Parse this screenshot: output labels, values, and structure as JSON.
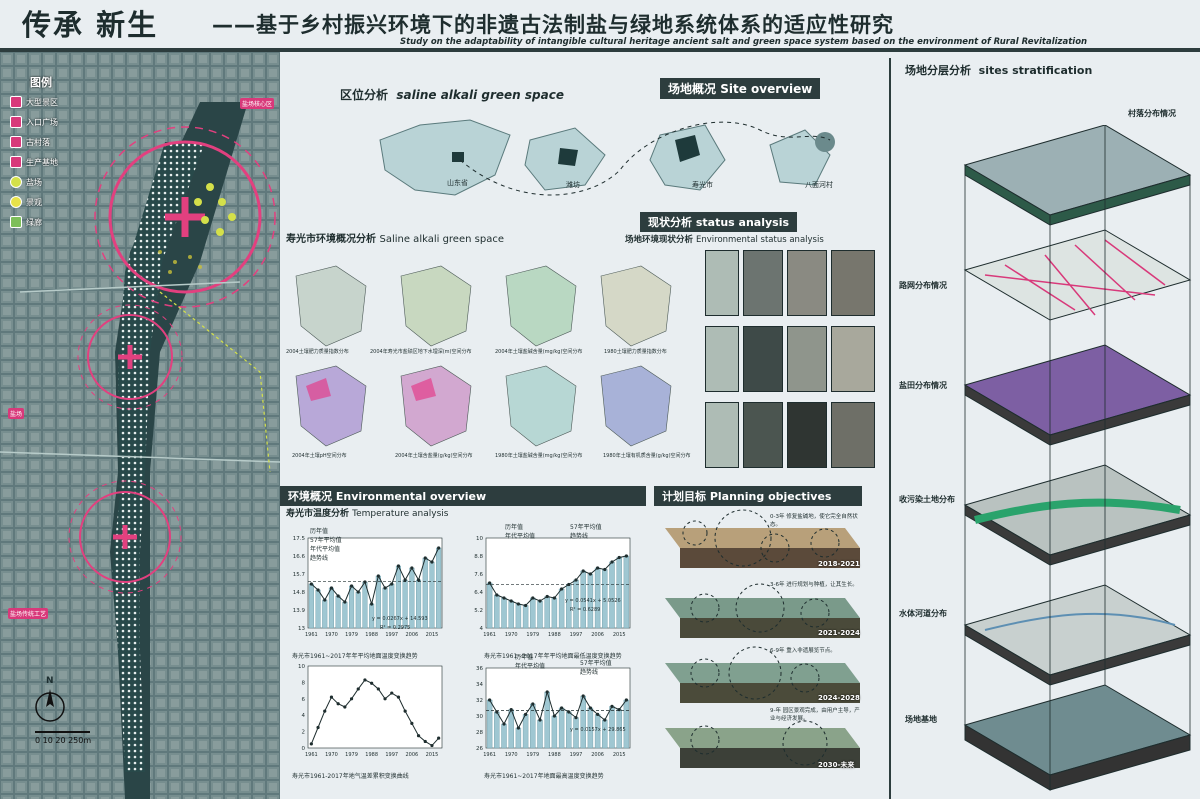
{
  "header": {
    "title": "传承 新生",
    "subtitle": "——基于乡村振兴环境下的非遗古法制盐与绿地系统体系的适应性研究",
    "subtitle_en": "Study on the adaptability of intangible cultural heritage ancient salt and green space system based on the environment of Rural Revitalization"
  },
  "legend": {
    "title": "图例",
    "items": [
      "大型景区",
      "入口广场",
      "古村落",
      "生产基地",
      "盐场",
      "景观"
    ],
    "river_label": "绿廊",
    "scale": "0  10  20    250m",
    "north": "N"
  },
  "map_labels": {
    "tag_top": "盐场核心区",
    "tag_mid": "盐场",
    "tag_low": "盐场传统工艺"
  },
  "location": {
    "heading": "区位分析",
    "heading_en": "saline alkali green space",
    "regions": [
      "山东省",
      "潍坊",
      "寿光市",
      "八面河村"
    ]
  },
  "site": {
    "heading": "场地概况",
    "heading_en": "Site overview"
  },
  "saline": {
    "heading": "寿光市环境概况分析",
    "heading_en": "Saline alkali green space",
    "maps": [
      "2004土壤肥力质量指数分布",
      "2004年寿光市盐碛区地下水埋深(m)空间分布",
      "2004年土壤盐碱含量(mg/kg)空间分布",
      "1980土壤肥力质量指数分布",
      "2004年土壤pH空间分布",
      "2004年土壤含盐量(g/kg)空间分布",
      "1980年土壤盐碱含量(mg/kg)空间分布",
      "1980年土壤有机质含量(g/kg)空间分布"
    ]
  },
  "status": {
    "heading": "现状分析",
    "heading_en": "status analysis",
    "sub": "场地环境现状分析",
    "sub_en": "Environmental status analysis"
  },
  "env": {
    "heading": "环境概况",
    "heading_en": "Environmental overview",
    "sub": "寿光市温度分析",
    "sub_en": "Temperature analysis"
  },
  "plan": {
    "heading": "计划目标",
    "heading_en": "Planning objectives",
    "stages": [
      "2018-2021",
      "2021-2024",
      "2024-2028",
      "2030-未来"
    ],
    "notes": [
      "0-3年 修复盐碱地，使它完全自然状态。",
      "3-6年 进行规划与种植，让其生长。",
      "6-9年 重入非遗展览节点。",
      "9-年 园区景观完成，由用户主导，产业与经济发展。"
    ]
  },
  "layers": {
    "heading": "场地分层分析",
    "heading_en": "sites stratification",
    "items": [
      "村落分布情况",
      "路网分布情况",
      "盐田分布情况",
      "收污染土地分布",
      "水体河道分布",
      "场地基地"
    ]
  },
  "charts_text": {
    "c1_caption": "寿光市1961~2017年年平均地面温度变换趋势",
    "c2_caption": "寿光市1961~2017年年平均地面最低温度变换趋势",
    "c3_caption": "寿光市1961-2017年地气温差累积变换曲线",
    "c4_caption": "寿光市1961~2017年地面最高温度变换趋势",
    "c1_eq": "y = 0.0267x + 14.593",
    "c1_r2": "R² = 0.2975",
    "c2_eq": "y = 0.0541x + 5.0526",
    "c2_r2": "R² = 0.6289",
    "c4_eq": "y = 0.0157x + 29.865",
    "leg_hist": "历年值",
    "leg_57": "57年平均值",
    "leg_dec": "年代平均值",
    "leg_trend": "趋势线",
    "ylabel1": "温度/℃",
    "xlabel": "年份"
  },
  "chart_data": [
    {
      "type": "line",
      "title": "寿光市1961~2017年年平均地面温度变换趋势",
      "xlabel": "年份",
      "ylabel": "温度/℃",
      "ylim": [
        13.0,
        17.5
      ],
      "x": [
        1961,
        1964,
        1967,
        1970,
        1973,
        1976,
        1979,
        1982,
        1985,
        1988,
        1991,
        1994,
        1997,
        2000,
        2003,
        2006,
        2009,
        2012,
        2015,
        2017
      ],
      "series": [
        {
          "name": "历年值",
          "values": [
            15.2,
            14.9,
            14.4,
            15.0,
            14.6,
            14.3,
            15.1,
            14.8,
            15.3,
            14.2,
            15.6,
            15.0,
            15.2,
            16.1,
            15.4,
            16.0,
            15.4,
            16.5,
            16.3,
            17.0
          ]
        }
      ]
    },
    {
      "type": "line",
      "title": "寿光市1961~2017年年平均地面最低温度变换趋势",
      "xlabel": "年份",
      "ylabel": "温度/℃",
      "ylim": [
        4.0,
        10.0
      ],
      "x": [
        1961,
        1964,
        1967,
        1970,
        1973,
        1976,
        1979,
        1982,
        1985,
        1988,
        1991,
        1994,
        1997,
        2000,
        2003,
        2006,
        2009,
        2012,
        2015,
        2017
      ],
      "series": [
        {
          "name": "历年值",
          "values": [
            7.0,
            6.2,
            6.0,
            5.8,
            5.6,
            5.5,
            6.0,
            5.8,
            6.1,
            6.0,
            6.6,
            6.9,
            7.2,
            7.8,
            7.6,
            8.0,
            7.9,
            8.4,
            8.7,
            8.8
          ]
        }
      ]
    },
    {
      "type": "line",
      "title": "寿光市1961-2017年地气温差累积变换曲线",
      "ylabel": "温差/℃",
      "ylim": [
        0,
        10
      ],
      "x": [
        1961,
        1964,
        1967,
        1970,
        1973,
        1976,
        1979,
        1982,
        1985,
        1988,
        1991,
        1994,
        1997,
        2000,
        2003,
        2006,
        2009,
        2012,
        2015,
        2017
      ],
      "series": [
        {
          "name": "",
          "values": [
            0.5,
            2.5,
            4.5,
            6.2,
            5.4,
            5.0,
            6.0,
            7.2,
            8.3,
            7.9,
            7.2,
            6.0,
            6.7,
            6.2,
            4.5,
            3.0,
            1.5,
            0.8,
            0.3,
            1.2
          ]
        }
      ]
    },
    {
      "type": "line",
      "title": "寿光市1961~2017年地面最高温度变换趋势",
      "ylabel": "温度/℃",
      "ylim": [
        26,
        36
      ],
      "x": [
        1961,
        1964,
        1967,
        1970,
        1973,
        1976,
        1979,
        1982,
        1985,
        1988,
        1991,
        1994,
        1997,
        2000,
        2003,
        2006,
        2009,
        2012,
        2015,
        2017
      ],
      "series": [
        {
          "name": "历年值",
          "values": [
            32.0,
            30.5,
            29.0,
            30.8,
            28.5,
            30.2,
            31.5,
            29.5,
            33.0,
            30.0,
            31.0,
            30.5,
            29.8,
            32.5,
            31.0,
            30.2,
            29.5,
            31.2,
            30.8,
            32.0
          ]
        }
      ]
    }
  ]
}
